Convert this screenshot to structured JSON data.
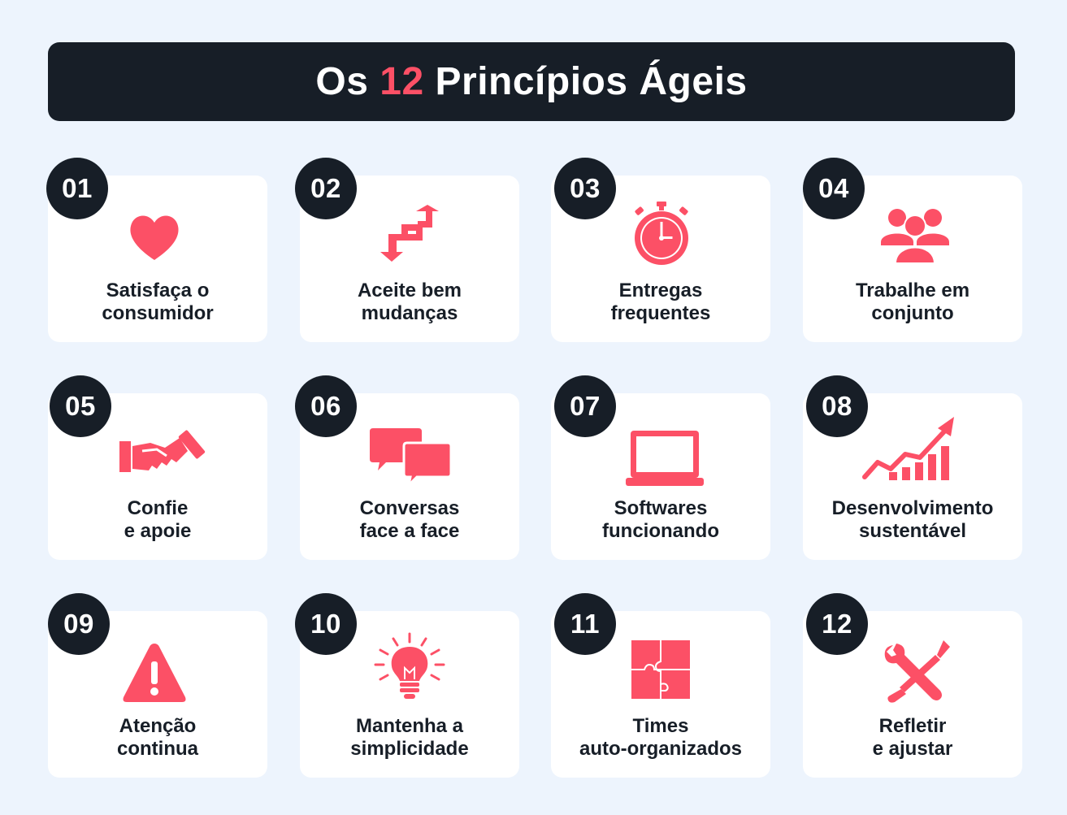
{
  "title": {
    "prefix": "Os ",
    "number": "12",
    "suffix": " Princípios Ágeis"
  },
  "colors": {
    "accent": "#fc5066",
    "dark": "#171e27",
    "background": "#edf4fd",
    "card": "#ffffff"
  },
  "principles": [
    {
      "number": "01",
      "icon": "heart-icon",
      "line1": "Satisfaça o",
      "line2": "consumidor"
    },
    {
      "number": "02",
      "icon": "exchange-arrows-icon",
      "line1": "Aceite bem",
      "line2": "mudanças"
    },
    {
      "number": "03",
      "icon": "stopwatch-icon",
      "line1": "Entregas",
      "line2": "frequentes"
    },
    {
      "number": "04",
      "icon": "team-icon",
      "line1": "Trabalhe em",
      "line2": "conjunto"
    },
    {
      "number": "05",
      "icon": "handshake-icon",
      "line1": "Confie",
      "line2": "e apoie"
    },
    {
      "number": "06",
      "icon": "chat-bubbles-icon",
      "line1": "Conversas",
      "line2": "face a face"
    },
    {
      "number": "07",
      "icon": "laptop-icon",
      "line1": "Softwares",
      "line2": "funcionando"
    },
    {
      "number": "08",
      "icon": "growth-chart-icon",
      "line1": "Desenvolvimento",
      "line2": "sustentável"
    },
    {
      "number": "09",
      "icon": "warning-icon",
      "line1": "Atenção",
      "line2": "continua"
    },
    {
      "number": "10",
      "icon": "lightbulb-icon",
      "line1": "Mantenha a",
      "line2": "simplicidade"
    },
    {
      "number": "11",
      "icon": "puzzle-icon",
      "line1": "Times",
      "line2": "auto-organizados"
    },
    {
      "number": "12",
      "icon": "tools-icon",
      "line1": "Refletir",
      "line2": "e ajustar"
    }
  ]
}
